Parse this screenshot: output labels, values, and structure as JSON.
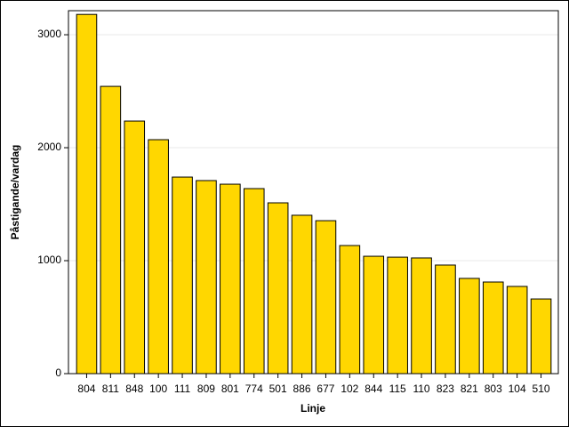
{
  "chart_data": {
    "type": "bar",
    "x_label": "Linje",
    "y_label": "Påstigande/vardag",
    "categories": [
      "804",
      "811",
      "848",
      "100",
      "111",
      "809",
      "801",
      "774",
      "501",
      "886",
      "677",
      "102",
      "844",
      "115",
      "110",
      "823",
      "821",
      "803",
      "104",
      "510"
    ],
    "values": [
      3180,
      2543,
      2236,
      2071,
      1740,
      1709,
      1677,
      1638,
      1512,
      1402,
      1354,
      1134,
      1039,
      1031,
      1024,
      961,
      843,
      811,
      772,
      661
    ],
    "color": "#ffd700",
    "ylim": [
      0,
      3213
    ],
    "yticks": [
      0,
      1000,
      2000,
      3000
    ],
    "grid": true
  }
}
